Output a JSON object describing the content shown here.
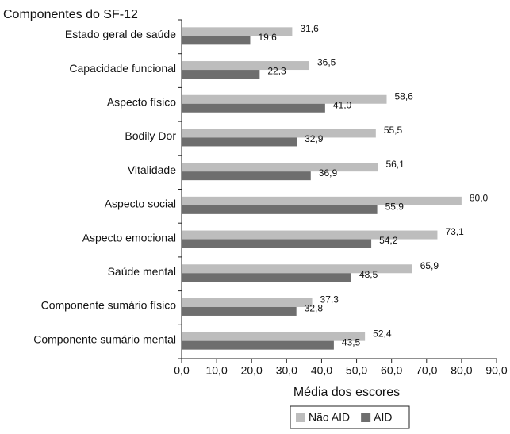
{
  "chart_data": {
    "type": "bar",
    "orientation": "horizontal",
    "title": "Componentes do SF-12",
    "x_label": "Média dos escores",
    "categories": [
      "Estado geral de saúde",
      "Capacidade funcional",
      "Aspecto físico",
      "Bodily Dor",
      "Vitalidade",
      "Aspecto social",
      "Aspecto emocional",
      "Saúde mental",
      "Componente sumário físico",
      "Componente sumário mental"
    ],
    "series": [
      {
        "name": "Não AID",
        "color": "#bdbdbd",
        "values": [
          31.6,
          36.5,
          58.6,
          55.5,
          56.1,
          80.0,
          73.1,
          65.9,
          37.3,
          52.4
        ],
        "value_labels": [
          "31,6",
          "36,5",
          "58,6",
          "55,5",
          "56,1",
          "80,0",
          "73,1",
          "65,9",
          "37,3",
          "52,4"
        ]
      },
      {
        "name": "AID",
        "color": "#6e6e6e",
        "values": [
          19.6,
          22.3,
          41.0,
          32.9,
          36.9,
          55.9,
          54.2,
          48.5,
          32.8,
          43.5
        ],
        "value_labels": [
          "19,6",
          "22,3",
          "41,0",
          "32,9",
          "36,9",
          "55,9",
          "54,2",
          "48,5",
          "32,8",
          "43,5"
        ]
      }
    ],
    "xlim": [
      0,
      90
    ],
    "xticks": [
      {
        "value": 0,
        "label": "0,0"
      },
      {
        "value": 10,
        "label": "10,0"
      },
      {
        "value": 20,
        "label": "20,0"
      },
      {
        "value": 30,
        "label": "30,0"
      },
      {
        "value": 40,
        "label": "40,0"
      },
      {
        "value": 50,
        "label": "50,0"
      },
      {
        "value": 60,
        "label": "60,0"
      },
      {
        "value": 70,
        "label": "70,0"
      },
      {
        "value": 80,
        "label": "80,0"
      },
      {
        "value": 90,
        "label": "90,0"
      }
    ],
    "grid": false,
    "legend": "bottom"
  }
}
